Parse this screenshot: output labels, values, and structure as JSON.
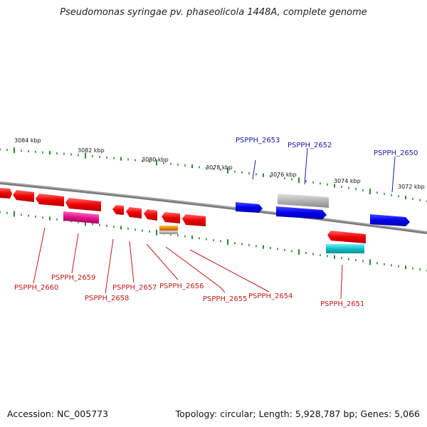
{
  "title": "Pseudomonas syringae pv. phaseolicola 1448A, complete genome",
  "footer": {
    "accession": "Accession: NC_005773",
    "summary": "Topology: circular; Length: 5,928,787 bp; Genes: 5,066"
  },
  "colors": {
    "forward": "#0000e6",
    "reverse": "#e60000",
    "grey": "#b4b4b4",
    "magenta": "#e6128c",
    "orange": "#ee8800",
    "cyan": "#10c0c8",
    "backbone": "#808080",
    "tick": "#2a8a2a",
    "label_forward": "#1a1aaa",
    "label_reverse": "#c41a1a"
  },
  "scale_labels": [
    "3084 kbp",
    "3082 kbp",
    "3080 kbp",
    "3078 kbp",
    "3076 kbp",
    "3074 kbp",
    "3072 kbp"
  ],
  "forward_labels": [
    "PSPPH_2653",
    "PSPPH_2652",
    "PSPPH_2650"
  ],
  "reverse_labels": [
    "PSPPH_2660",
    "PSPPH_2659",
    "PSPPH_2658",
    "PSPPH_2657",
    "PSPPH_2656",
    "PSPPH_2655",
    "PSPPH_2654",
    "PSPPH_2651"
  ]
}
